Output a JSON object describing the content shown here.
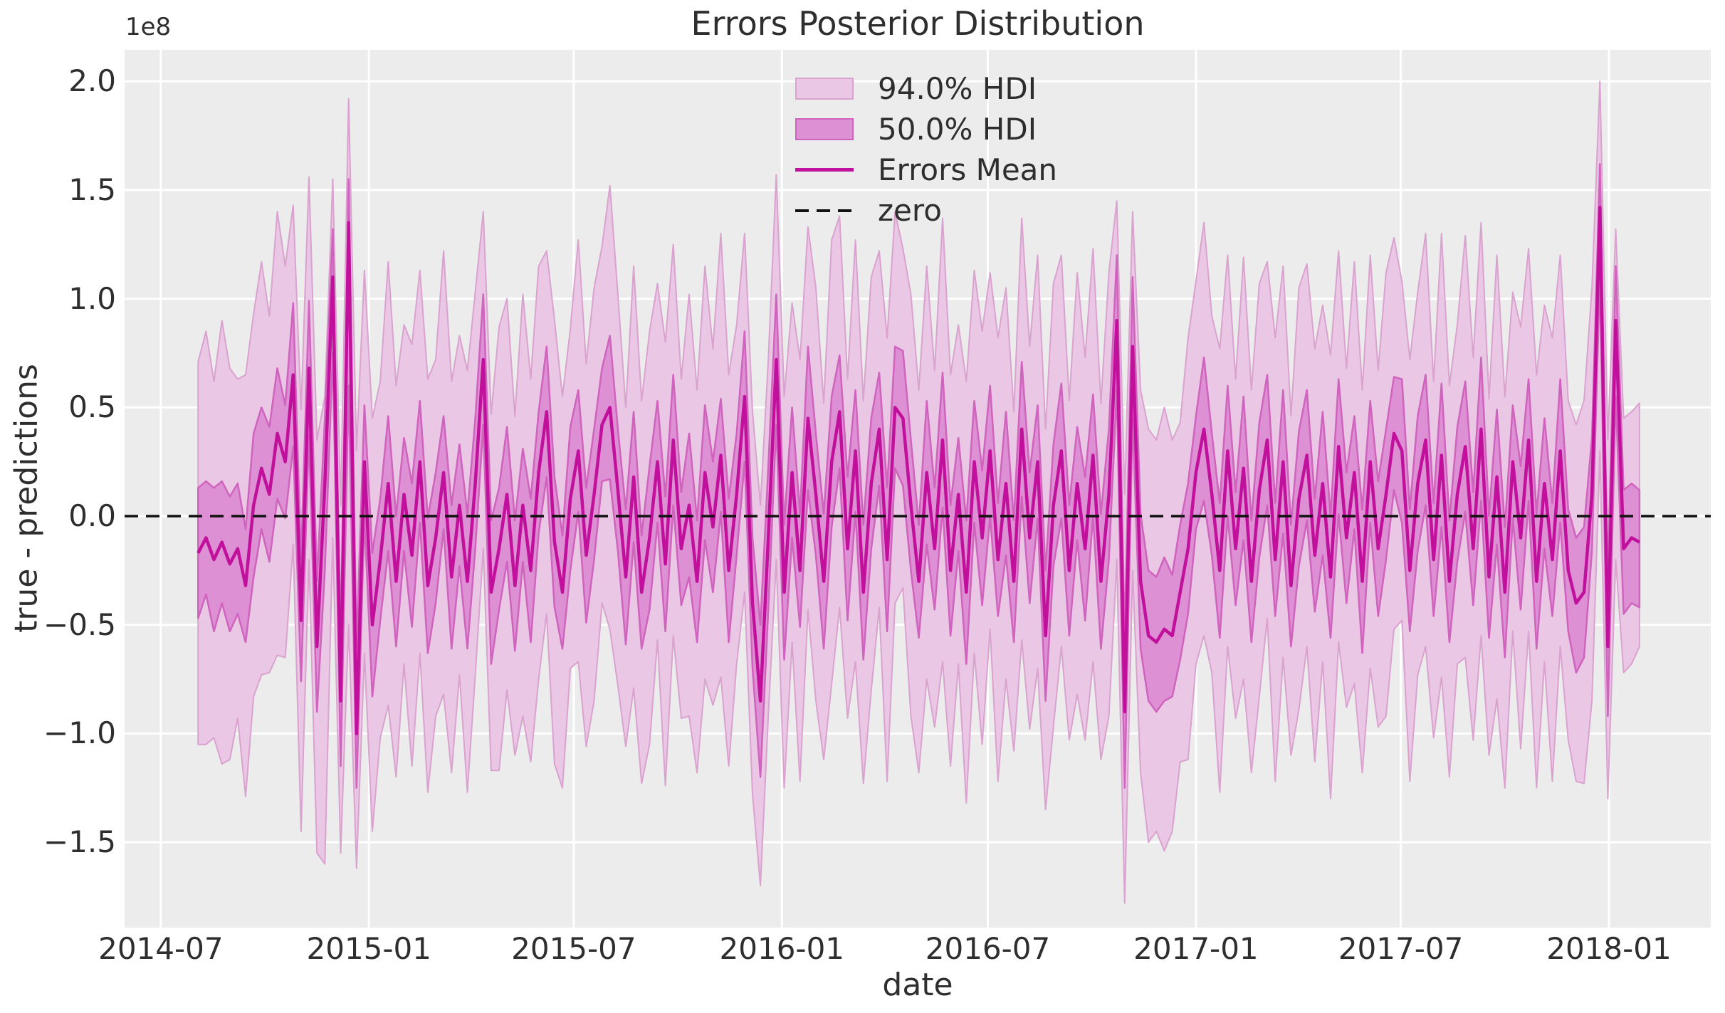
{
  "colors": {
    "figure_bg": "#ffffff",
    "axes_bg": "#ececec",
    "grid": "#ffffff",
    "hdi94_fill": "#eac7e4",
    "hdi94_edge": "#d9a2cf",
    "hdi50_fill": "#dd90d3",
    "hdi50_edge": "#cf63bd",
    "mean_line": "#c1119c",
    "zero_line": "#111111",
    "text": "#2e2e2e"
  },
  "legend": {
    "items": [
      {
        "label": "94.0% HDI",
        "swatch": "patch-light"
      },
      {
        "label": "50.0% HDI",
        "swatch": "patch-dark"
      },
      {
        "label": "Errors Mean",
        "swatch": "line"
      },
      {
        "label": "zero",
        "swatch": "dashed-line"
      }
    ]
  },
  "chart_data": {
    "type": "area",
    "title": "Errors Posterior Distribution",
    "xlabel": "date",
    "ylabel": "true - predictions",
    "y_offset_label": "1e8",
    "grid": true,
    "legend_position": "upper center",
    "x_range": [
      "2014-05-30",
      "2018-04-01"
    ],
    "y_range_1e8": [
      -1.89,
      2.14
    ],
    "x_ticks": [
      {
        "date": "2014-07-01",
        "label": "2014-07"
      },
      {
        "date": "2015-01-01",
        "label": "2015-01"
      },
      {
        "date": "2015-07-01",
        "label": "2015-07"
      },
      {
        "date": "2016-01-01",
        "label": "2016-01"
      },
      {
        "date": "2016-07-01",
        "label": "2016-07"
      },
      {
        "date": "2017-01-01",
        "label": "2017-01"
      },
      {
        "date": "2017-07-01",
        "label": "2017-07"
      },
      {
        "date": "2018-01-01",
        "label": "2018-01"
      }
    ],
    "y_ticks": [
      {
        "value": 2.0,
        "label": "2.0"
      },
      {
        "value": 1.5,
        "label": "1.5"
      },
      {
        "value": 1.0,
        "label": "1.0"
      },
      {
        "value": 0.5,
        "label": "0.5"
      },
      {
        "value": 0.0,
        "label": "0.0"
      },
      {
        "value": -0.5,
        "label": "−0.5"
      },
      {
        "value": -1.0,
        "label": "−1.0"
      },
      {
        "value": -1.5,
        "label": "−1.5"
      }
    ],
    "series": {
      "name": "Errors Mean",
      "start_date": "2014-08-03",
      "step_days": 7,
      "mean_1e8": [
        -0.17,
        -0.1,
        -0.2,
        -0.12,
        -0.22,
        -0.15,
        -0.32,
        0.05,
        0.22,
        0.1,
        0.38,
        0.25,
        0.65,
        -0.48,
        0.68,
        -0.6,
        0.15,
        1.1,
        -0.85,
        1.35,
        -1.0,
        0.25,
        -0.5,
        -0.2,
        0.15,
        -0.3,
        0.1,
        -0.18,
        0.25,
        -0.32,
        -0.1,
        0.2,
        -0.28,
        0.05,
        -0.3,
        0.15,
        0.72,
        -0.35,
        -0.15,
        0.1,
        -0.32,
        0.05,
        -0.25,
        0.2,
        0.48,
        -0.12,
        -0.35,
        0.08,
        0.3,
        -0.18,
        0.1,
        0.42,
        0.5,
        0.12,
        -0.28,
        0.18,
        -0.35,
        -0.1,
        0.25,
        -0.22,
        0.35,
        -0.15,
        0.05,
        -0.3,
        0.2,
        -0.05,
        0.28,
        -0.25,
        0.1,
        0.55,
        -0.4,
        -0.85,
        -0.1,
        0.72,
        -0.35,
        0.2,
        -0.25,
        0.45,
        0.1,
        -0.3,
        0.25,
        0.48,
        -0.15,
        0.3,
        -0.35,
        0.15,
        0.4,
        -0.2,
        0.5,
        0.45,
        0.05,
        -0.3,
        0.2,
        -0.15,
        0.35,
        -0.25,
        0.1,
        -0.35,
        0.25,
        -0.1,
        0.3,
        -0.2,
        0.15,
        -0.3,
        0.4,
        -0.1,
        0.25,
        -0.55,
        0.05,
        0.3,
        -0.25,
        0.15,
        -0.15,
        0.28,
        -0.3,
        0.1,
        0.9,
        -0.9,
        0.78,
        -0.3,
        -0.55,
        -0.58,
        -0.52,
        -0.55,
        -0.35,
        -0.15,
        0.2,
        0.4,
        0.1,
        -0.25,
        0.3,
        -0.15,
        0.22,
        -0.3,
        0.12,
        0.35,
        -0.2,
        0.25,
        -0.32,
        0.08,
        0.28,
        -0.18,
        0.15,
        -0.28,
        0.32,
        -0.1,
        0.2,
        -0.3,
        0.25,
        -0.15,
        0.1,
        0.38,
        0.3,
        -0.25,
        0.15,
        0.35,
        -0.2,
        0.28,
        -0.3,
        0.1,
        0.32,
        -0.15,
        0.4,
        -0.28,
        0.18,
        -0.35,
        0.25,
        -0.1,
        0.35,
        -0.3,
        0.15,
        -0.2,
        0.3,
        -0.25,
        -0.4,
        -0.35,
        0.1,
        1.42,
        -0.6,
        0.9,
        -0.15,
        -0.1,
        -0.12
      ],
      "hdi50_halfwidth_cycle_1e8": [
        0.3,
        0.26,
        0.33,
        0.28,
        0.31
      ],
      "hdi94_halfwidth_cycle_1e8": [
        0.88,
        0.95,
        0.82,
        1.02,
        0.9,
        0.78,
        0.97
      ],
      "band_overrides_1e8": {
        "16": [
          -1.6,
          -0.25,
          0.45,
          0.55
        ],
        "17": [
          -0.1,
          0.75,
          1.32,
          1.55
        ],
        "18": [
          -1.55,
          -1.15,
          -0.55,
          0.05
        ],
        "19": [
          -0.5,
          0.6,
          1.55,
          1.92
        ],
        "20": [
          -1.62,
          -1.25,
          -0.6,
          0.3
        ],
        "36": [
          -0.15,
          0.42,
          1.02,
          1.4
        ],
        "44": [
          -0.45,
          0.18,
          0.78,
          1.22
        ],
        "69": [
          -0.35,
          0.25,
          0.85,
          1.3
        ],
        "71": [
          -1.7,
          -1.2,
          -0.5,
          0.05
        ],
        "73": [
          -0.2,
          0.42,
          1.02,
          1.57
        ],
        "107": [
          -1.35,
          -0.85,
          -0.25,
          0.4
        ],
        "116": [
          -0.2,
          0.58,
          1.2,
          1.45
        ],
        "117": [
          -1.78,
          -1.25,
          -0.55,
          0.1
        ],
        "118": [
          -0.25,
          0.45,
          1.1,
          1.4
        ],
        "121": [
          -1.45,
          -0.9,
          -0.28,
          0.35
        ],
        "174": [
          -1.22,
          -0.72,
          -0.1,
          0.42
        ],
        "177": [
          0.3,
          1.1,
          1.62,
          2.0
        ],
        "178": [
          -1.3,
          -0.92,
          -0.28,
          0.35
        ],
        "179": [
          -0.2,
          0.55,
          1.15,
          1.32
        ],
        "180": [
          -0.72,
          -0.45,
          0.12,
          0.45
        ],
        "181": [
          -0.68,
          -0.4,
          0.15,
          0.48
        ],
        "182": [
          -0.6,
          -0.42,
          0.12,
          0.52
        ]
      }
    }
  }
}
